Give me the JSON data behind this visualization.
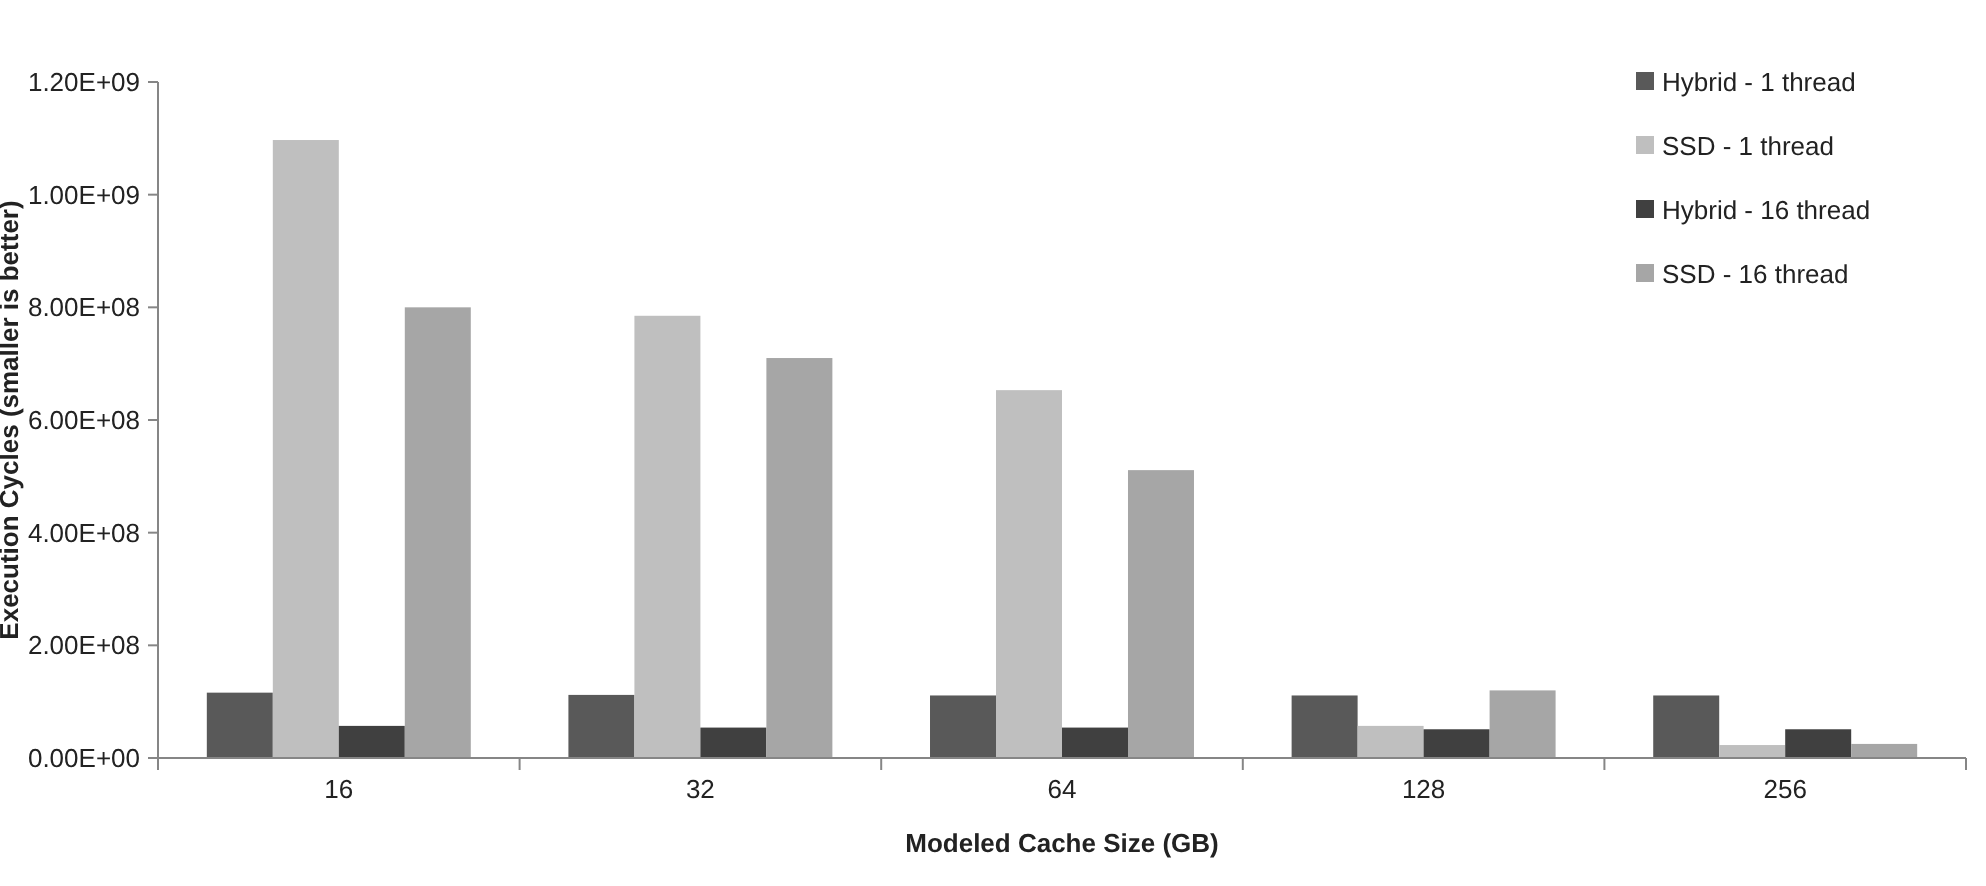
{
  "chart_data": {
    "type": "bar",
    "xlabel": "Modeled Cache Size (GB)",
    "ylabel": "Execution Cycles (smaller is better)",
    "categories": [
      "16",
      "32",
      "64",
      "128",
      "256"
    ],
    "series": [
      {
        "name": "Hybrid - 1 thread",
        "color": "#595959",
        "values": [
          116000000,
          112000000,
          111000000,
          111000000,
          111000000
        ]
      },
      {
        "name": "SSD - 1 thread",
        "color": "#bfbfbf",
        "values": [
          1097000000,
          785000000,
          653000000,
          57000000,
          23000000
        ]
      },
      {
        "name": "Hybrid - 16 thread",
        "color": "#404040",
        "values": [
          57000000,
          54000000,
          54000000,
          51000000,
          51000000
        ]
      },
      {
        "name": "SSD - 16 thread",
        "color": "#a6a6a6",
        "values": [
          800000000,
          710000000,
          511000000,
          120000000,
          25000000
        ]
      }
    ],
    "ylim": [
      0,
      1200000000
    ],
    "yticks": [
      {
        "value": 0,
        "label": "0.00E+00"
      },
      {
        "value": 200000000,
        "label": "2.00E+08"
      },
      {
        "value": 400000000,
        "label": "4.00E+08"
      },
      {
        "value": 600000000,
        "label": "6.00E+08"
      },
      {
        "value": 800000000,
        "label": "8.00E+08"
      },
      {
        "value": 1000000000,
        "label": "1.00E+09"
      },
      {
        "value": 1200000000,
        "label": "1.20E+09"
      }
    ],
    "grid": false,
    "legend": "top right"
  }
}
